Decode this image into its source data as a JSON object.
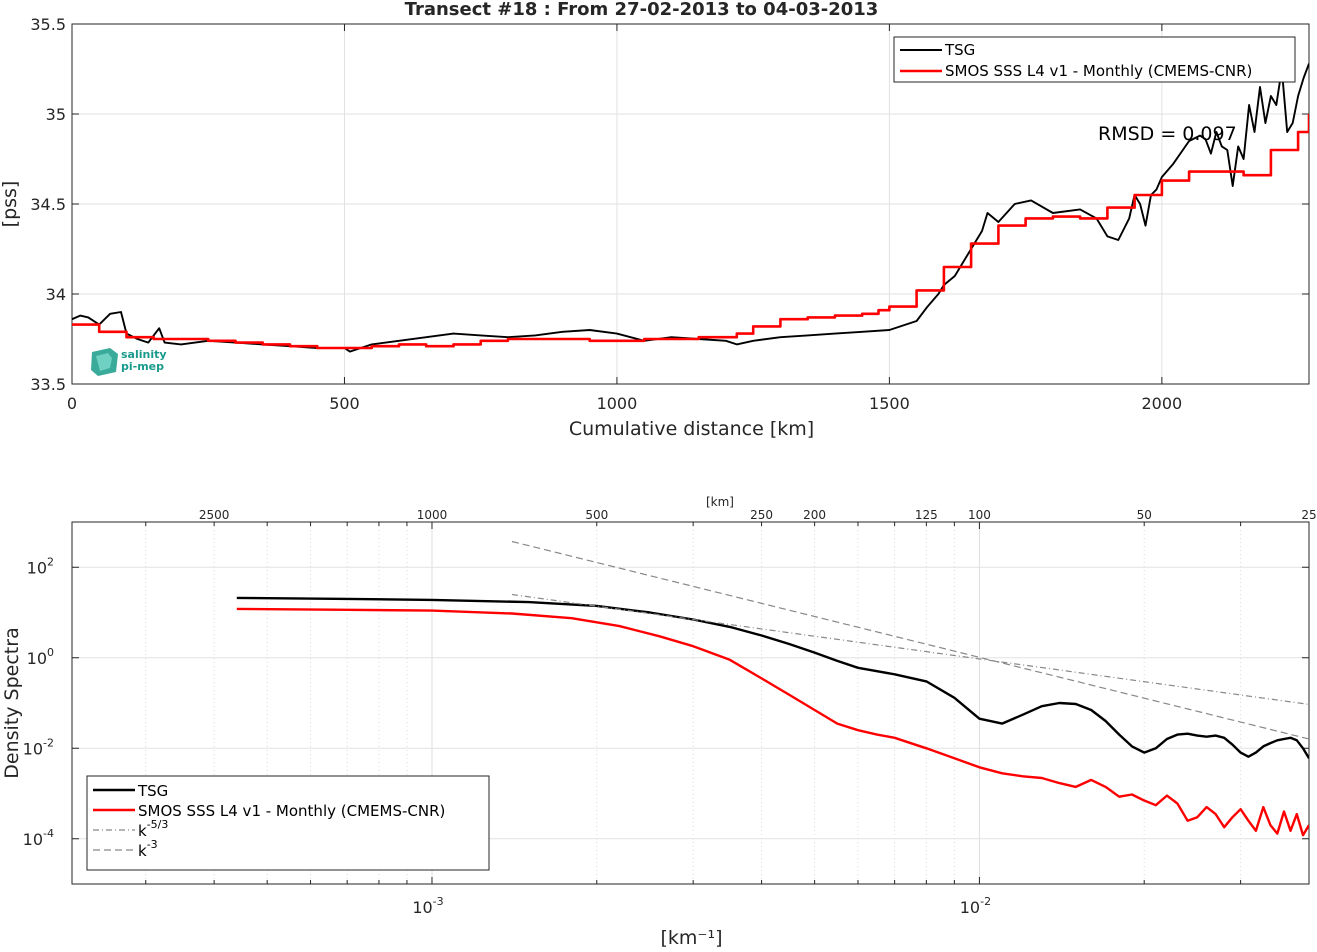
{
  "chart_data": [
    {
      "type": "line",
      "title": "Transect #18 : From 27-02-2013 to 04-03-2013",
      "xlabel": "Cumulative distance [km]",
      "ylabel": "[pss]",
      "xlim": [
        0,
        2270
      ],
      "ylim": [
        33.5,
        35.5
      ],
      "x_ticks": [
        0,
        500,
        1000,
        1500,
        2000
      ],
      "x_tick_labels": [
        "0",
        "500",
        "1000",
        "1500",
        "2000"
      ],
      "y_ticks": [
        33.5,
        34,
        34.5,
        35,
        35.5
      ],
      "y_tick_labels": [
        "33.5",
        "34",
        "34.5",
        "35",
        "35.5"
      ],
      "grid": true,
      "legend_position": "top-right",
      "annotation": "RMSD = 0.097",
      "logo": {
        "line1": "salinity",
        "line2": "pi-mep"
      },
      "series": [
        {
          "name": "TSG",
          "color": "#000000",
          "x": [
            0,
            15,
            30,
            50,
            70,
            90,
            100,
            120,
            140,
            160,
            170,
            200,
            250,
            300,
            350,
            400,
            450,
            500,
            510,
            550,
            600,
            650,
            700,
            750,
            800,
            850,
            900,
            950,
            1000,
            1050,
            1100,
            1150,
            1200,
            1220,
            1250,
            1300,
            1350,
            1400,
            1450,
            1500,
            1550,
            1570,
            1590,
            1600,
            1620,
            1650,
            1670,
            1680,
            1700,
            1730,
            1760,
            1800,
            1850,
            1880,
            1900,
            1920,
            1940,
            1950,
            1960,
            1970,
            1980,
            1990,
            2000,
            2020,
            2050,
            2070,
            2080,
            2090,
            2100,
            2110,
            2120,
            2130,
            2140,
            2150,
            2160,
            2170,
            2180,
            2190,
            2200,
            2210,
            2220,
            2230,
            2240,
            2250,
            2260,
            2270
          ],
          "y": [
            33.86,
            33.88,
            33.87,
            33.83,
            33.89,
            33.9,
            33.78,
            33.75,
            33.73,
            33.81,
            33.73,
            33.72,
            33.74,
            33.73,
            33.72,
            33.71,
            33.7,
            33.7,
            33.68,
            33.72,
            33.74,
            33.76,
            33.78,
            33.77,
            33.76,
            33.77,
            33.79,
            33.8,
            33.78,
            33.74,
            33.76,
            33.75,
            33.74,
            33.72,
            33.74,
            33.76,
            33.77,
            33.78,
            33.79,
            33.8,
            33.85,
            33.93,
            34.0,
            34.05,
            34.1,
            34.25,
            34.35,
            34.45,
            34.4,
            34.5,
            34.52,
            34.45,
            34.47,
            34.42,
            34.32,
            34.3,
            34.42,
            34.55,
            34.5,
            34.38,
            34.55,
            34.58,
            34.65,
            34.72,
            34.85,
            34.88,
            34.86,
            34.78,
            34.9,
            34.82,
            34.8,
            34.6,
            34.82,
            34.75,
            35.05,
            34.9,
            35.15,
            34.95,
            35.1,
            35.05,
            35.25,
            34.9,
            34.95,
            35.1,
            35.2,
            35.28
          ]
        },
        {
          "name": "SMOS SSS L4 v1 - Monthly (CMEMS-CNR)",
          "color": "#ff0000",
          "x": [
            0,
            50,
            100,
            150,
            200,
            250,
            300,
            350,
            400,
            450,
            500,
            550,
            600,
            650,
            700,
            750,
            800,
            850,
            900,
            950,
            1000,
            1050,
            1100,
            1150,
            1200,
            1220,
            1250,
            1300,
            1350,
            1400,
            1450,
            1480,
            1500,
            1550,
            1600,
            1650,
            1700,
            1750,
            1800,
            1850,
            1900,
            1950,
            2000,
            2050,
            2100,
            2150,
            2200,
            2250,
            2270
          ],
          "y": [
            33.83,
            33.79,
            33.76,
            33.75,
            33.75,
            33.74,
            33.73,
            33.72,
            33.71,
            33.7,
            33.7,
            33.71,
            33.72,
            33.71,
            33.72,
            33.74,
            33.75,
            33.75,
            33.75,
            33.74,
            33.74,
            33.75,
            33.75,
            33.76,
            33.76,
            33.78,
            33.82,
            33.86,
            33.87,
            33.88,
            33.89,
            33.91,
            33.93,
            34.02,
            34.15,
            34.28,
            34.38,
            34.42,
            34.43,
            34.42,
            34.48,
            34.55,
            34.63,
            34.68,
            34.68,
            34.66,
            34.8,
            34.9,
            35.0
          ]
        }
      ]
    },
    {
      "type": "line",
      "xlabel": "[km⁻¹]",
      "ylabel": "Density Spectra",
      "x_scale": "log",
      "y_scale": "log",
      "xlim": [
        0.00022,
        0.04
      ],
      "ylim": [
        1e-05,
        1000
      ],
      "x_ticks": [
        0.001,
        0.01
      ],
      "x_tick_labels": [
        {
          "base": "10",
          "exp": "-3"
        },
        {
          "base": "10",
          "exp": "-2"
        }
      ],
      "y_ticks": [
        0.0001,
        0.01,
        1,
        100
      ],
      "y_tick_labels": [
        {
          "base": "10",
          "exp": "-4"
        },
        {
          "base": "10",
          "exp": "-2"
        },
        {
          "base": "10",
          "exp": "0"
        },
        {
          "base": "10",
          "exp": "2"
        }
      ],
      "top_axis_label": "[km]",
      "top_ticks_km": [
        2500,
        1000,
        500,
        250,
        200,
        125,
        100,
        50,
        25
      ],
      "top_tick_labels": [
        "2500",
        "1000",
        "500",
        "250",
        "200",
        "125",
        "100",
        "50",
        "25"
      ],
      "grid": true,
      "legend_position": "bottom-left",
      "series": [
        {
          "name": "TSG",
          "color": "#000000",
          "x": [
            0.00044,
            0.0007,
            0.001,
            0.0015,
            0.002,
            0.0025,
            0.003,
            0.0035,
            0.004,
            0.0045,
            0.005,
            0.0055,
            0.006,
            0.007,
            0.008,
            0.009,
            0.01,
            0.011,
            0.012,
            0.013,
            0.014,
            0.015,
            0.016,
            0.017,
            0.018,
            0.019,
            0.02,
            0.021,
            0.022,
            0.023,
            0.024,
            0.025,
            0.026,
            0.027,
            0.028,
            0.029,
            0.03,
            0.031,
            0.032,
            0.033,
            0.034,
            0.035,
            0.036,
            0.037,
            0.038,
            0.039,
            0.04
          ],
          "y": [
            21,
            20,
            19,
            17,
            14,
            10,
            7,
            4.8,
            3.1,
            2.0,
            1.3,
            0.85,
            0.6,
            0.43,
            0.3,
            0.13,
            0.045,
            0.035,
            0.055,
            0.085,
            0.1,
            0.095,
            0.07,
            0.04,
            0.02,
            0.011,
            0.008,
            0.01,
            0.016,
            0.02,
            0.021,
            0.019,
            0.018,
            0.019,
            0.017,
            0.012,
            0.008,
            0.0065,
            0.008,
            0.011,
            0.013,
            0.015,
            0.016,
            0.017,
            0.015,
            0.01,
            0.006
          ]
        },
        {
          "name": "SMOS SSS L4 v1 - Monthly (CMEMS-CNR)",
          "color": "#ff0000",
          "x": [
            0.00044,
            0.0007,
            0.001,
            0.0014,
            0.0018,
            0.0022,
            0.0026,
            0.003,
            0.0035,
            0.004,
            0.0045,
            0.005,
            0.0055,
            0.006,
            0.0065,
            0.007,
            0.008,
            0.009,
            0.01,
            0.011,
            0.012,
            0.013,
            0.014,
            0.015,
            0.016,
            0.017,
            0.018,
            0.019,
            0.02,
            0.021,
            0.022,
            0.023,
            0.024,
            0.025,
            0.026,
            0.027,
            0.028,
            0.029,
            0.03,
            0.031,
            0.032,
            0.033,
            0.034,
            0.035,
            0.036,
            0.037,
            0.038,
            0.039,
            0.04
          ],
          "y": [
            12,
            11.5,
            11,
            9.5,
            7.5,
            5,
            3.0,
            1.8,
            0.9,
            0.35,
            0.15,
            0.07,
            0.035,
            0.025,
            0.02,
            0.017,
            0.01,
            0.006,
            0.0038,
            0.0028,
            0.0024,
            0.0022,
            0.0017,
            0.0014,
            0.002,
            0.0014,
            0.00085,
            0.00095,
            0.0007,
            0.00055,
            0.0009,
            0.0006,
            0.00025,
            0.0003,
            0.0005,
            0.00035,
            0.00018,
            0.0003,
            0.00045,
            0.00025,
            0.00015,
            0.0005,
            0.0002,
            0.00013,
            0.0004,
            0.00015,
            0.00035,
            0.00012,
            0.0002
          ]
        },
        {
          "name": "k-5/3",
          "color": "#888888",
          "dash": "dashdot",
          "x": [
            0.0014,
            0.04
          ],
          "y": [
            25,
            0.093
          ]
        },
        {
          "name": "k-3",
          "color": "#888888",
          "dash": "dashed",
          "x": [
            0.0014,
            0.04
          ],
          "y": [
            370,
            0.016
          ]
        }
      ],
      "legend": [
        {
          "name": "TSG",
          "style": "solid",
          "color": "#000000"
        },
        {
          "name": "SMOS SSS L4 v1 - Monthly (CMEMS-CNR)",
          "style": "solid",
          "color": "#ff0000"
        },
        {
          "name": "k",
          "sup": "-5/3",
          "style": "dashdot",
          "color": "#888888"
        },
        {
          "name": "k",
          "sup": "-3",
          "style": "dashed",
          "color": "#888888"
        }
      ]
    }
  ]
}
